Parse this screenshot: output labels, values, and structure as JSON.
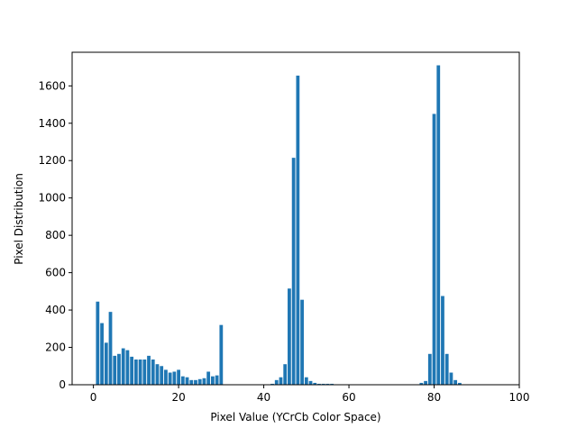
{
  "chart_data": {
    "type": "bar",
    "title": "",
    "xlabel": "Pixel Value (YCrCb Color Space)",
    "ylabel": "Pixel Distribution",
    "xlim": [
      -5,
      100
    ],
    "ylim": [
      0,
      1780
    ],
    "x_ticks": [
      0,
      20,
      40,
      60,
      80,
      100
    ],
    "y_ticks": [
      0,
      200,
      400,
      600,
      800,
      1000,
      1200,
      1400,
      1600
    ],
    "grid": false,
    "bar_color": "#1f77b4",
    "x": [
      1,
      2,
      3,
      4,
      5,
      6,
      7,
      8,
      9,
      10,
      11,
      12,
      13,
      14,
      15,
      16,
      17,
      18,
      19,
      20,
      21,
      22,
      23,
      24,
      25,
      26,
      27,
      28,
      29,
      30,
      31,
      42,
      43,
      44,
      45,
      46,
      47,
      48,
      49,
      50,
      51,
      52,
      53,
      54,
      55,
      56,
      77,
      78,
      79,
      80,
      81,
      82,
      83,
      84,
      85,
      86
    ],
    "values": [
      445,
      330,
      225,
      390,
      155,
      165,
      195,
      185,
      150,
      135,
      135,
      135,
      155,
      135,
      110,
      100,
      80,
      65,
      70,
      80,
      45,
      40,
      25,
      25,
      30,
      35,
      70,
      45,
      50,
      320,
      0,
      5,
      25,
      40,
      110,
      515,
      1215,
      1655,
      455,
      40,
      20,
      10,
      5,
      5,
      5,
      5,
      10,
      20,
      165,
      1450,
      1710,
      475,
      165,
      65,
      25,
      10
    ]
  }
}
